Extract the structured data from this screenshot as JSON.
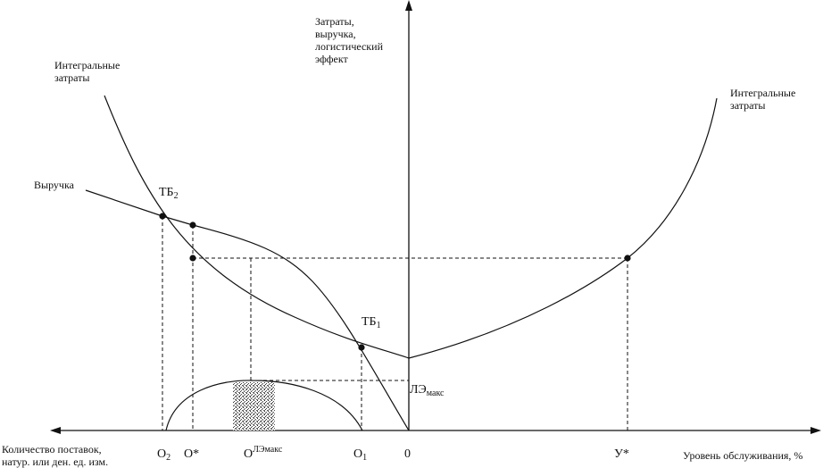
{
  "labels": {
    "y_axis": "Затраты,\nвыручка,\nлогистический\nэффект",
    "integral_costs_left": "Интегральные\nзатраты",
    "integral_costs_right": "Интегральные\nзатраты",
    "revenue": "Выручка",
    "tb2_main": "ТБ",
    "tb2_sub": "2",
    "tb1_main": "ТБ",
    "tb1_sub": "1",
    "le_max_main": "ЛЭ",
    "le_max_sub": "макс",
    "x_left_title": "Количество поставок,\nнатур. или ден. ед. изм.",
    "x_right_title": "Уровень обслуживания, %"
  },
  "ticks": {
    "o2_main": "O",
    "o2_sub": "2",
    "o_star": "O*",
    "o_le_main": "O",
    "o_le_sup": "ЛЭмакс",
    "o1_main": "O",
    "o1_sub": "1",
    "zero": "0",
    "u_star": "У*"
  },
  "colors": {
    "ink": "#111111",
    "shaded_area": "#9a9a9a"
  }
}
